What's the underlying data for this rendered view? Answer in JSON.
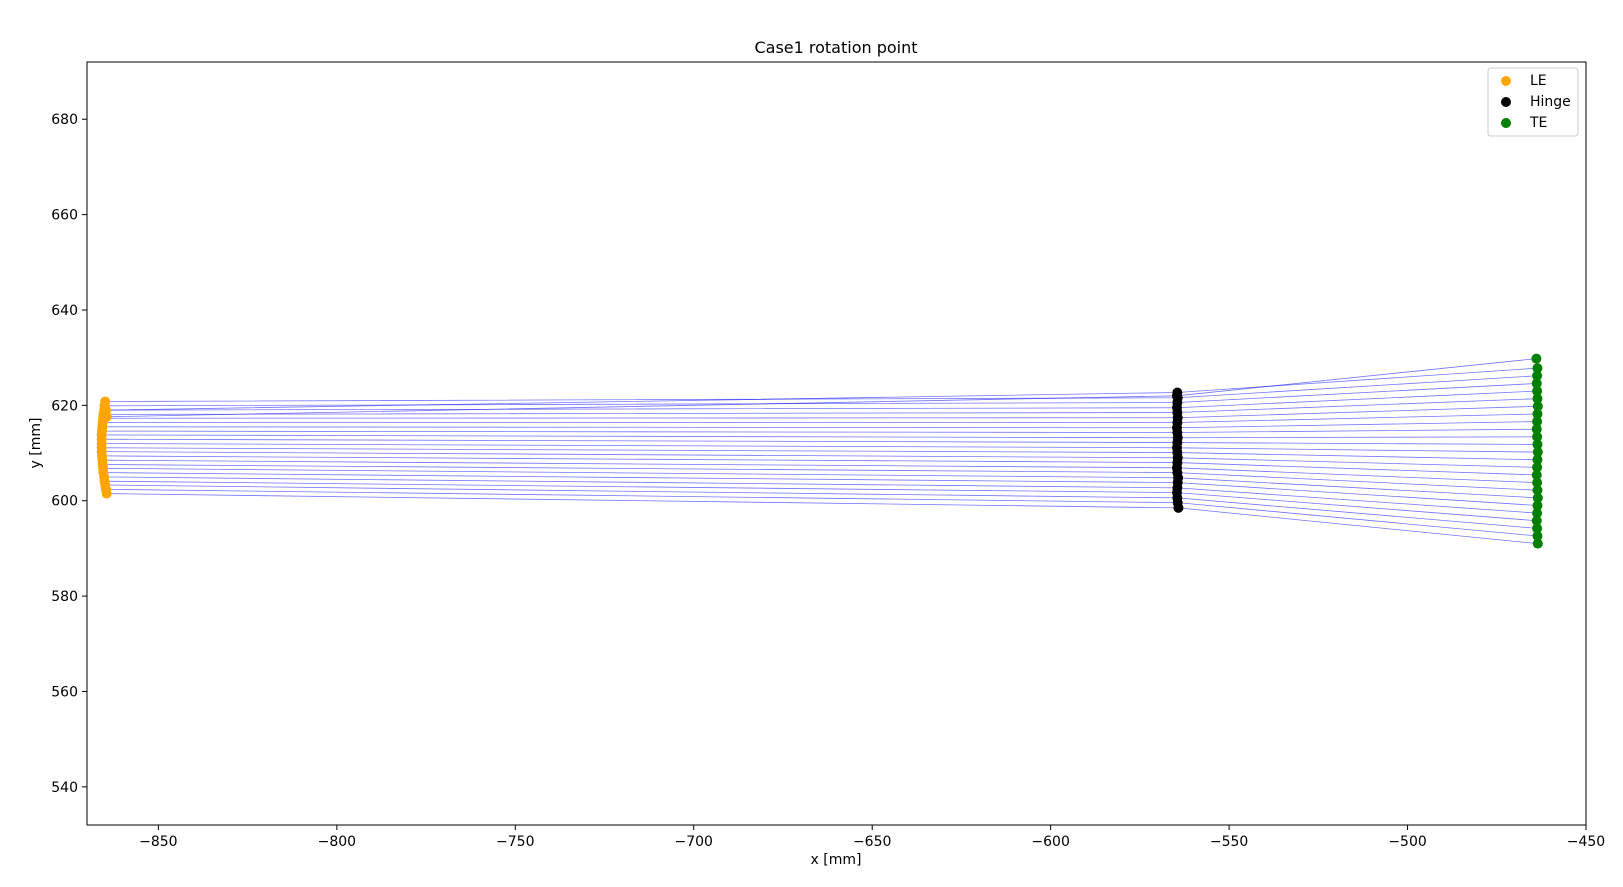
{
  "chart_data": {
    "type": "scatter",
    "title": "Case1 rotation point",
    "xlabel": "x [mm]",
    "ylabel": "y [mm]",
    "xlim": [
      -870,
      -450
    ],
    "ylim": [
      532,
      692
    ],
    "xticks": [
      -850,
      -800,
      -750,
      -700,
      -650,
      -600,
      -550,
      -500,
      -450
    ],
    "yticks": [
      540,
      560,
      580,
      600,
      620,
      640,
      660,
      680
    ],
    "xtick_labels": [
      "−850",
      "−800",
      "−750",
      "−700",
      "−650",
      "−600",
      "−550",
      "−500",
      "−450"
    ],
    "ytick_labels": [
      "540",
      "560",
      "580",
      "600",
      "620",
      "640",
      "660",
      "680"
    ],
    "grid": false,
    "legend_position": "top-right",
    "series": [
      {
        "name": "LE",
        "color": "#ffa500",
        "x": [
          -864.5,
          -864.7,
          -864.9,
          -865.1,
          -865.2,
          -865.4,
          -865.5,
          -865.6,
          -865.7,
          -865.8,
          -865.9,
          -865.9,
          -865.9,
          -865.9,
          -865.9,
          -865.8,
          -865.7,
          -865.6,
          -865.5,
          -865.4,
          -865.2,
          -865.1,
          -864.9,
          -864.7,
          -864.5
        ],
        "y": [
          601.5,
          602.4,
          603.3,
          604.1,
          605.0,
          605.9,
          606.8,
          607.6,
          608.5,
          609.4,
          610.3,
          611.1,
          612.0,
          612.9,
          613.8,
          614.6,
          615.5,
          616.4,
          617.3,
          618.1,
          619.0,
          619.9,
          620.8,
          619.0,
          617.6
        ]
      },
      {
        "name": "Hinge",
        "color": "#000000",
        "x": [
          -564.2,
          -564.4,
          -564.5,
          -564.6,
          -564.5,
          -564.4,
          -564.3,
          -564.5,
          -564.6,
          -564.5,
          -564.4,
          -564.5,
          -564.6,
          -564.5,
          -564.4,
          -564.5,
          -564.6,
          -564.5,
          -564.4,
          -564.5,
          -564.6,
          -564.5,
          -564.4,
          -564.5,
          -564.6
        ],
        "y": [
          598.5,
          599.6,
          600.6,
          601.7,
          602.7,
          603.8,
          604.8,
          605.9,
          606.9,
          608.0,
          609.0,
          610.1,
          611.1,
          612.2,
          613.2,
          614.3,
          615.3,
          616.4,
          617.4,
          618.5,
          619.5,
          620.6,
          621.6,
          622.7,
          622.0
        ]
      },
      {
        "name": "TE",
        "color": "#008000",
        "x": [
          -463.5,
          -463.6,
          -463.7,
          -463.8,
          -463.7,
          -463.6,
          -463.5,
          -463.6,
          -463.7,
          -463.8,
          -463.7,
          -463.6,
          -463.5,
          -463.6,
          -463.7,
          -463.8,
          -463.7,
          -463.6,
          -463.5,
          -463.6,
          -463.7,
          -463.8,
          -463.7,
          -463.6,
          -463.9
        ],
        "y": [
          591.0,
          592.6,
          594.2,
          595.8,
          597.4,
          599.0,
          600.6,
          602.2,
          603.8,
          605.4,
          607.0,
          608.6,
          610.2,
          611.8,
          613.4,
          615.0,
          616.6,
          618.2,
          619.8,
          621.4,
          623.0,
          624.6,
          626.2,
          627.8,
          629.8
        ]
      }
    ],
    "line_color": "#0000ff"
  }
}
